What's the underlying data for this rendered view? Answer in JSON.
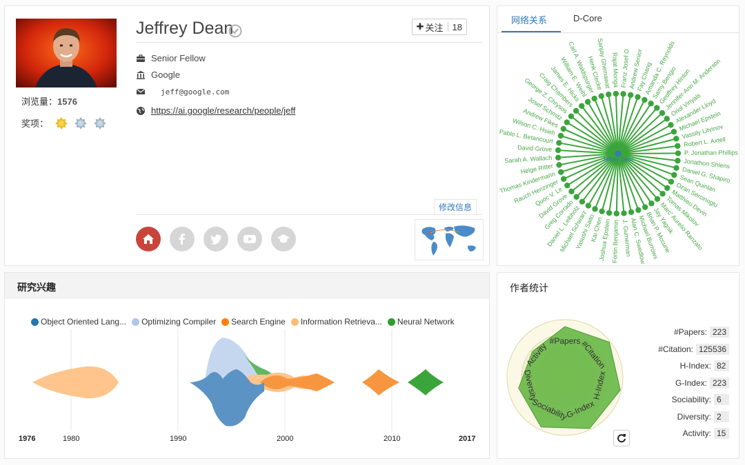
{
  "profile": {
    "name": "Jeffrey Dean",
    "views_label": "浏览量：",
    "views": "1576",
    "awards_label": "奖项：",
    "follow_label": "关注",
    "follow_count": "18",
    "position": "Senior Fellow",
    "affiliation": "Google",
    "email": "jeff@google.com",
    "homepage": "https://ai.google/research/people/jeff",
    "edit_label": "修改信息"
  },
  "network": {
    "tabs": [
      "网络关系",
      "D-Core"
    ],
    "center": "Jeffrey Dean",
    "coauthors": [
      "Franz Josef O",
      "Andrew Senior",
      "Fay Chang",
      "Amanda C. Reynolds",
      "Samy Bengio",
      "Geoffrey Hinton",
      "Jennifer-Ann M. Anderson",
      "Oriol Vinyals",
      "Alexander Lloyd",
      "Michael Epstein",
      "Vassily Litvinov",
      "Robert L. Axtell",
      "P. Jonathan Phillips",
      "Jonathon Shlens",
      "Daniel G. Shapiro",
      "Sean Quinlan",
      "Ozan Sercinoglu",
      "Matthieu Devin",
      "Tomas Mikolov",
      "Marc' Aurelio Ranzato",
      "Jay Yagnik",
      "Brian P. Mccune",
      "Michael Burrows",
      "Alan C. Swedlow",
      "J. Gumerman",
      "Fortin Benjamin",
      "Joshua Epstein",
      "Kai Chen",
      "Yasushi Saito",
      "Michael Schwarz",
      "Daniel L. Leibholz",
      "Greg Corrado",
      "David Grove",
      "Quoc V. Le",
      "Rauch Henzinger",
      "Thomas Kindermann",
      "Helge Ritter",
      "Sarah A. Wallach",
      "David Grove",
      "Pablo L. Betancourt",
      "Wilson C. Hsieh",
      "Andrew Fikes",
      "Josef Schmitz",
      "George Z. Chrysos",
      "Craig Chambers",
      "James E. Hicks",
      "William E. Weihl",
      "Carl A. Waldspurger",
      "Henk Clecke",
      "Sanjay Ghemawat",
      "Rajat Monga"
    ]
  },
  "interests": {
    "title": "研究兴趣",
    "legend": [
      {
        "label": "Object Oriented Lang...",
        "color": "#1f77b4"
      },
      {
        "label": "Optimizing Compiler",
        "color": "#aec7e8"
      },
      {
        "label": "Search Engine",
        "color": "#ff7f0e"
      },
      {
        "label": "Information Retrieva...",
        "color": "#ffbb78"
      },
      {
        "label": "Neural Network",
        "color": "#2ca02c"
      }
    ],
    "axis": {
      "start": "1976",
      "end": "2017",
      "ticks": [
        "1980",
        "1990",
        "2000",
        "2010"
      ]
    }
  },
  "stats": {
    "title": "作者统计",
    "rows": [
      {
        "label": "#Papers:",
        "value": "223"
      },
      {
        "label": "#Citation:",
        "value": "125536"
      },
      {
        "label": "H-Index:",
        "value": "82"
      },
      {
        "label": "G-Index:",
        "value": "223"
      },
      {
        "label": "Sociability:",
        "value": "6"
      },
      {
        "label": "Diversity:",
        "value": "2"
      },
      {
        "label": "Activity:",
        "value": "15"
      }
    ],
    "radar_axes": [
      "#Papers",
      "#Citation",
      "H-Index",
      "G-Index",
      "Sociability",
      "Diversity",
      "Activity"
    ],
    "radar_fill": "#6ab84a"
  },
  "colors": {
    "accent": "#337ab7",
    "network_green": "#3aa53a",
    "home_red": "#c9453c"
  }
}
